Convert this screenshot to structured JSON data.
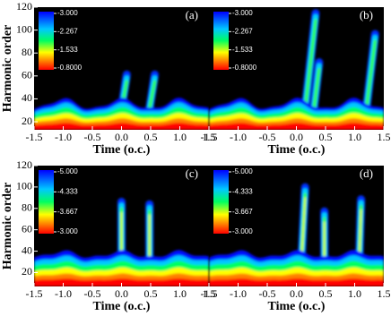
{
  "chart_data": [
    {
      "type": "heatmap",
      "panel_label": "(a)",
      "ylabel": "Harmonic order",
      "xlabel": "Time (o.c.)",
      "xlim": [
        -1.5,
        1.5
      ],
      "ylim": [
        13,
        120
      ],
      "xticks": [
        -1.5,
        {
          "value": -1,
          "label": "-1.0"
        },
        -0.5,
        {
          "value": 0,
          "label": "0.0"
        },
        0.5,
        {
          "value": 1,
          "label": "1.0"
        },
        1.5
      ],
      "yticks": [
        20,
        40,
        60,
        80,
        100,
        120
      ],
      "zlim": [
        -3,
        -0.8
      ],
      "zticks": [
        {
          "value": -3,
          "label": "-3.000"
        },
        {
          "value": -2.267,
          "label": "-2.267"
        },
        {
          "value": -1.533,
          "label": "-1.533"
        },
        {
          "value": -0.8,
          "label": "-0.8000"
        }
      ]
    },
    {
      "type": "heatmap",
      "panel_label": "(b)",
      "xlabel": "Time (o.c.)",
      "xlim": [
        -1.5,
        1.5
      ],
      "ylim": [
        13,
        120
      ],
      "xticks": [
        -1.5,
        {
          "value": -1,
          "label": "-1.0"
        },
        -0.5,
        {
          "value": 0,
          "label": "0.0"
        },
        0.5,
        {
          "value": 1,
          "label": "1.0"
        },
        1.5
      ],
      "zlim": [
        -3,
        -0.8
      ],
      "zticks": [
        {
          "value": -3,
          "label": "-3.000"
        },
        {
          "value": -2.267,
          "label": "-2.267"
        },
        {
          "value": -1.533,
          "label": "-1.533"
        },
        {
          "value": -0.8,
          "label": "-0.8000"
        }
      ]
    },
    {
      "type": "heatmap",
      "panel_label": "(c)",
      "ylabel": "Harmonic order",
      "xlabel": "Time (o.c.)",
      "xlim": [
        -1.5,
        1.5
      ],
      "ylim": [
        7,
        120
      ],
      "xticks": [
        -1.5,
        {
          "value": -1,
          "label": "-1.0"
        },
        -0.5,
        {
          "value": 0,
          "label": "0.0"
        },
        0.5,
        {
          "value": 1,
          "label": "1.0"
        },
        1.5
      ],
      "yticks": [
        20,
        40,
        60,
        80,
        100,
        120
      ],
      "zlim": [
        -5,
        -3
      ],
      "zticks": [
        {
          "value": -5,
          "label": "-5.000"
        },
        {
          "value": -4.333,
          "label": "-4.333"
        },
        {
          "value": -3.667,
          "label": "-3.667"
        },
        {
          "value": -3,
          "label": "-3.000"
        }
      ]
    },
    {
      "type": "heatmap",
      "panel_label": "(d)",
      "xlabel": "Time (o.c.)",
      "xlim": [
        -1.5,
        1.5
      ],
      "ylim": [
        7,
        120
      ],
      "xticks": [
        -1.5,
        {
          "value": -1,
          "label": "-1.0"
        },
        -0.5,
        {
          "value": 0,
          "label": "0.0"
        },
        0.5,
        {
          "value": 1,
          "label": "1.0"
        },
        1.5
      ],
      "zlim": [
        -5,
        -3
      ],
      "zticks": [
        {
          "value": -5,
          "label": "-5.000"
        },
        {
          "value": -4.333,
          "label": "-4.333"
        },
        {
          "value": -3.667,
          "label": "-3.667"
        },
        {
          "value": -3,
          "label": "-3.000"
        }
      ]
    }
  ]
}
